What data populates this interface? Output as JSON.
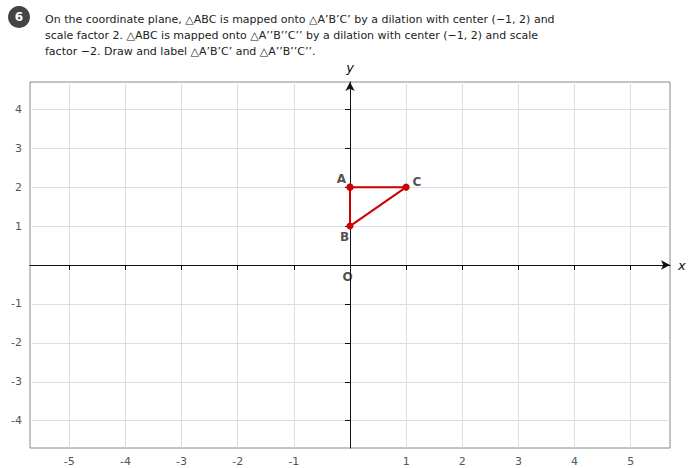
{
  "chart_data": {
    "type": "line",
    "title": "On the coordinate plane, △ABC is mapped onto △A’B’C’ by a dilation with center (−1, 2) and\nscale factor 2. △ABC is mapped onto △A’’B’’C’’ by a dilation with center (−1, 2) and scale\nfactor −2. Draw and label △A’B’C’ and △A’’B’’C’’.",
    "xlabel": "x",
    "ylabel": "y",
    "x": [
      0,
      0,
      1,
      0
    ],
    "values": [
      2,
      1,
      2,
      2
    ],
    "color": "#cc0000",
    "marker": "circle",
    "xlim": [
      -5.7,
      5.7
    ],
    "ylim": [
      -4.7,
      4.7
    ],
    "xticks": [
      -5,
      -4,
      -3,
      -2,
      -1,
      1,
      2,
      3,
      4,
      5
    ],
    "yticks": [
      -4,
      -3,
      -2,
      -1,
      1,
      2,
      3,
      4
    ],
    "grid": true,
    "annotations": [
      {
        "text": "6"
      },
      {
        "text": "A",
        "x": 0,
        "y": 2
      },
      {
        "text": "B",
        "x": 0,
        "y": 1
      },
      {
        "text": "C",
        "x": 1,
        "y": 2
      },
      {
        "text": "O",
        "x": 0,
        "y": 0
      }
    ]
  }
}
